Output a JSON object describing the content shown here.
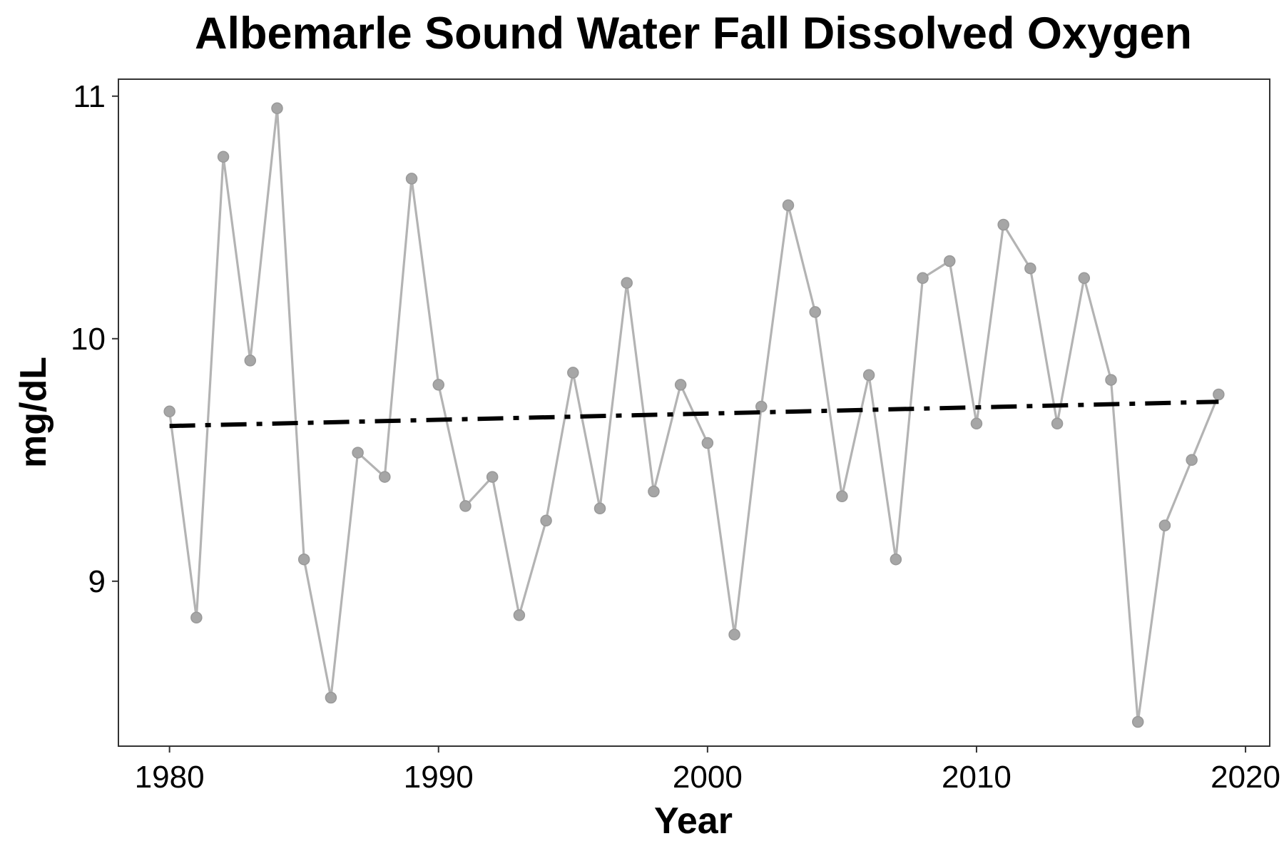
{
  "chart_data": {
    "type": "line",
    "title": "Albemarle Sound Water Fall Dissolved Oxygen",
    "xlabel": "Year",
    "ylabel": "mg/dL",
    "xlim": [
      1978.1,
      2020.9
    ],
    "ylim": [
      8.32,
      11.07
    ],
    "xticks": [
      1980,
      1990,
      2000,
      2010,
      2020
    ],
    "yticks": [
      9,
      10,
      11
    ],
    "grid": false,
    "legend": "none",
    "colors": {
      "series_line": "#b3b3b3",
      "series_point": "#a6a6a6",
      "trend": "#000000",
      "panel_border": "#333333",
      "tick": "#333333"
    },
    "series": [
      {
        "x": [
          1980,
          1981,
          1982,
          1983,
          1984,
          1985,
          1986,
          1987,
          1988,
          1989,
          1990,
          1991,
          1992,
          1993,
          1994,
          1995,
          1996,
          1997,
          1998,
          1999,
          2000,
          2001,
          2002,
          2003,
          2004,
          2005,
          2006,
          2007,
          2008,
          2009,
          2010,
          2011,
          2012,
          2013,
          2014,
          2015,
          2016,
          2017,
          2018,
          2019
        ],
        "values": [
          9.7,
          8.85,
          10.75,
          9.91,
          10.95,
          9.09,
          8.52,
          9.53,
          9.43,
          10.66,
          9.81,
          9.31,
          9.43,
          8.86,
          9.25,
          9.86,
          9.3,
          10.23,
          9.37,
          9.81,
          9.57,
          8.78,
          9.72,
          10.55,
          10.11,
          9.35,
          9.85,
          9.09,
          10.25,
          10.32,
          9.65,
          10.47,
          10.29,
          9.65,
          10.25,
          9.83,
          8.42,
          9.23,
          9.5,
          9.77
        ]
      }
    ],
    "trend_line": {
      "x": [
        1980,
        2019
      ],
      "values": [
        9.64,
        9.74
      ],
      "style": "dash-dot"
    }
  }
}
